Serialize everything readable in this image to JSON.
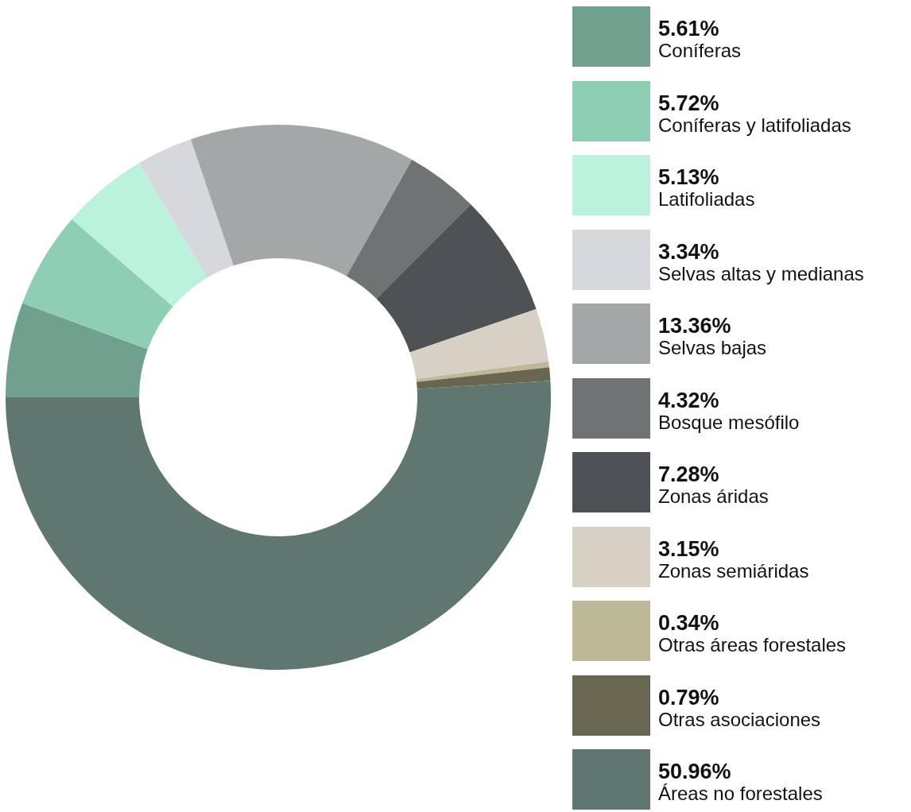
{
  "chart_data": {
    "type": "donut",
    "legend": "right",
    "categories": [
      "Coníferas",
      "Coníferas y latifoliadas",
      "Latifoliadas",
      "Selvas altas y medianas",
      "Selvas bajas",
      "Bosque mesófilo",
      "Zonas áridas",
      "Zonas semiáridas",
      "Otras áreas forestales",
      "Otras asociaciones",
      "Áreas no forestales"
    ],
    "values": [
      5.61,
      5.72,
      5.13,
      3.34,
      13.36,
      4.32,
      7.28,
      3.15,
      0.34,
      0.79,
      50.96
    ],
    "value_labels": [
      "5.61%",
      "5.72%",
      "5.13%",
      "3.34%",
      "13.36%",
      "4.32%",
      "7.28%",
      "3.15%",
      "0.34%",
      "0.79%",
      "50.96%"
    ],
    "colors": [
      "#6fa18e",
      "#8ecfb3",
      "#bbf2dc",
      "#d6d8db",
      "#a3a7a7",
      "#6f7373",
      "#4e5254",
      "#d7d1c5",
      "#bdb898",
      "#686650",
      "#5f7770"
    ]
  }
}
